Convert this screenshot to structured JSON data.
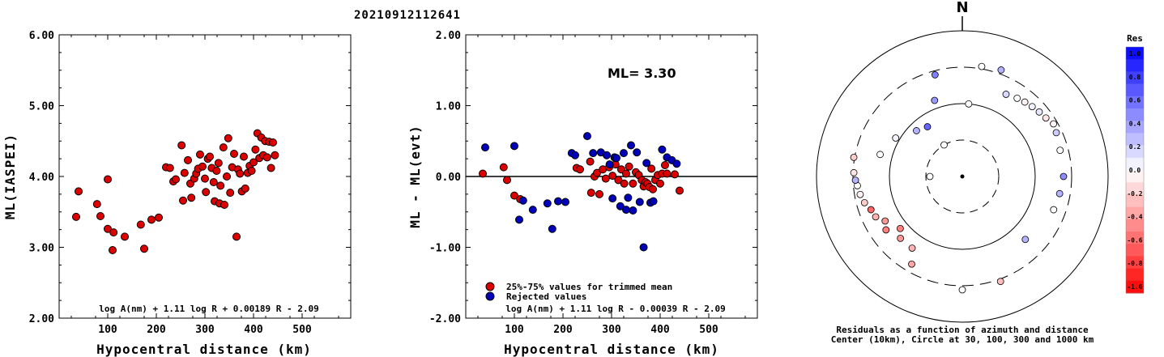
{
  "event_id": "20210912112641",
  "colors": {
    "accepted": "#dd0000",
    "rejected": "#0000bb",
    "axis": "#000000"
  },
  "chart_data": [
    {
      "type": "scatter",
      "ylabel": "ML(IASPEI)",
      "xlabel": "Hypocentral distance (km)",
      "xlim": [
        0,
        600
      ],
      "ylim": [
        2.0,
        6.0
      ],
      "xticks": [
        "100",
        "200",
        "300",
        "400",
        "500"
      ],
      "yticks": [
        "2.00",
        "3.00",
        "4.00",
        "5.00",
        "6.00"
      ],
      "formula": "log A(nm) + 1.11 log R + 0.00189 R - 2.09",
      "points": [
        [
          35,
          3.43
        ],
        [
          40,
          3.79
        ],
        [
          78,
          3.61
        ],
        [
          85,
          3.44
        ],
        [
          100,
          3.96
        ],
        [
          100,
          3.26
        ],
        [
          110,
          2.96
        ],
        [
          112,
          3.21
        ],
        [
          135,
          3.15
        ],
        [
          168,
          3.32
        ],
        [
          175,
          2.98
        ],
        [
          190,
          3.39
        ],
        [
          205,
          3.42
        ],
        [
          220,
          4.13
        ],
        [
          228,
          4.12
        ],
        [
          235,
          3.93
        ],
        [
          240,
          3.96
        ],
        [
          252,
          4.44
        ],
        [
          255,
          3.66
        ],
        [
          258,
          4.05
        ],
        [
          265,
          4.23
        ],
        [
          270,
          3.9
        ],
        [
          272,
          3.7
        ],
        [
          278,
          3.97
        ],
        [
          282,
          4.04
        ],
        [
          286,
          4.11
        ],
        [
          290,
          4.31
        ],
        [
          295,
          4.14
        ],
        [
          300,
          3.97
        ],
        [
          302,
          3.78
        ],
        [
          306,
          4.25
        ],
        [
          310,
          4.28
        ],
        [
          314,
          4.12
        ],
        [
          318,
          3.92
        ],
        [
          320,
          3.65
        ],
        [
          324,
          4.08
        ],
        [
          328,
          4.19
        ],
        [
          330,
          3.62
        ],
        [
          332,
          3.87
        ],
        [
          338,
          4.41
        ],
        [
          340,
          3.6
        ],
        [
          345,
          4.0
        ],
        [
          348,
          4.54
        ],
        [
          352,
          3.77
        ],
        [
          356,
          4.13
        ],
        [
          360,
          4.32
        ],
        [
          365,
          3.15
        ],
        [
          368,
          4.1
        ],
        [
          372,
          4.04
        ],
        [
          376,
          3.79
        ],
        [
          380,
          4.28
        ],
        [
          383,
          3.83
        ],
        [
          388,
          4.05
        ],
        [
          392,
          4.15
        ],
        [
          396,
          4.08
        ],
        [
          400,
          4.2
        ],
        [
          404,
          4.38
        ],
        [
          408,
          4.61
        ],
        [
          412,
          4.26
        ],
        [
          416,
          4.55
        ],
        [
          420,
          4.3
        ],
        [
          424,
          4.5
        ],
        [
          428,
          4.27
        ],
        [
          432,
          4.49
        ],
        [
          436,
          4.12
        ],
        [
          440,
          4.48
        ],
        [
          444,
          4.3
        ]
      ]
    },
    {
      "type": "scatter",
      "ylabel": "ML - ML(evt)",
      "xlabel": "Hypocentral distance (km)",
      "xlim": [
        0,
        600
      ],
      "ylim": [
        -2.0,
        2.0
      ],
      "xticks": [
        "100",
        "200",
        "300",
        "400",
        "500"
      ],
      "yticks": [
        "-2.00",
        "-1.00",
        "0.00",
        "1.00",
        "2.00"
      ],
      "ml_label": "ML= 3.30",
      "formula": "log A(nm) + 1.11 log R - 0.00039 R - 2.09",
      "legend": [
        {
          "label": "25%-75% values for trimmed mean",
          "kind": "accepted"
        },
        {
          "label": "Rejected values",
          "kind": "rejected"
        }
      ],
      "series": [
        {
          "name": "25%-75% values for trimmed mean",
          "kind": "accepted",
          "points": [
            [
              35,
              0.04
            ],
            [
              78,
              0.13
            ],
            [
              85,
              -0.05
            ],
            [
              100,
              -0.27
            ],
            [
              112,
              -0.32
            ],
            [
              228,
              0.12
            ],
            [
              235,
              0.1
            ],
            [
              256,
              0.21
            ],
            [
              258,
              -0.23
            ],
            [
              265,
              0.0
            ],
            [
              270,
              0.05
            ],
            [
              275,
              -0.25
            ],
            [
              282,
              0.1
            ],
            [
              288,
              -0.03
            ],
            [
              295,
              0.13
            ],
            [
              302,
              0.01
            ],
            [
              308,
              0.17
            ],
            [
              314,
              -0.05
            ],
            [
              320,
              0.1
            ],
            [
              326,
              -0.1
            ],
            [
              330,
              0.04
            ],
            [
              336,
              0.14
            ],
            [
              344,
              -0.1
            ],
            [
              350,
              0.06
            ],
            [
              356,
              0.02
            ],
            [
              362,
              -0.05
            ],
            [
              366,
              -0.14
            ],
            [
              370,
              -0.08
            ],
            [
              374,
              -0.1
            ],
            [
              378,
              -0.15
            ],
            [
              382,
              0.11
            ],
            [
              385,
              -0.18
            ],
            [
              390,
              -0.05
            ],
            [
              395,
              0.02
            ],
            [
              400,
              -0.1
            ],
            [
              404,
              0.04
            ],
            [
              410,
              0.16
            ],
            [
              414,
              0.04
            ],
            [
              430,
              0.03
            ],
            [
              440,
              -0.2
            ]
          ]
        },
        {
          "name": "Rejected values",
          "kind": "rejected",
          "points": [
            [
              40,
              0.41
            ],
            [
              100,
              0.43
            ],
            [
              110,
              -0.61
            ],
            [
              118,
              -0.34
            ],
            [
              138,
              -0.47
            ],
            [
              168,
              -0.38
            ],
            [
              178,
              -0.74
            ],
            [
              190,
              -0.35
            ],
            [
              205,
              -0.36
            ],
            [
              218,
              0.33
            ],
            [
              225,
              0.3
            ],
            [
              250,
              0.57
            ],
            [
              262,
              0.33
            ],
            [
              278,
              0.34
            ],
            [
              290,
              0.3
            ],
            [
              296,
              0.17
            ],
            [
              302,
              -0.31
            ],
            [
              306,
              0.27
            ],
            [
              310,
              0.26
            ],
            [
              318,
              -0.42
            ],
            [
              325,
              0.33
            ],
            [
              330,
              -0.47
            ],
            [
              334,
              -0.3
            ],
            [
              340,
              0.44
            ],
            [
              344,
              -0.48
            ],
            [
              352,
              0.34
            ],
            [
              358,
              -0.36
            ],
            [
              366,
              -1.0
            ],
            [
              372,
              0.19
            ],
            [
              380,
              -0.37
            ],
            [
              386,
              -0.35
            ],
            [
              404,
              0.38
            ],
            [
              414,
              0.27
            ],
            [
              424,
              0.23
            ],
            [
              434,
              0.18
            ]
          ]
        }
      ]
    },
    {
      "type": "polar-scatter",
      "north_label": "N",
      "legend_title": "Res",
      "colorbar_ticks": [
        "1.0",
        "0.8",
        "0.6",
        "0.4",
        "0.2",
        "0.0",
        "-0.2",
        "-0.4",
        "-0.6",
        "-0.8",
        "-1.0"
      ],
      "caption_lines": [
        "Residuals as a function of azimuth and distance",
        "Center (10km), Circle at 30, 100, 300 and 1000 km"
      ],
      "points": [
        {
          "az": 5,
          "d": 90,
          "res": 0.0
        },
        {
          "az": 270,
          "d": 40,
          "res": 0.0
        },
        {
          "az": 330,
          "d": 45,
          "res": 0.0
        },
        {
          "az": 28,
          "d": 115,
          "res": 0.15
        },
        {
          "az": 35,
          "d": 118,
          "res": 0.0
        },
        {
          "az": 40,
          "d": 120,
          "res": -0.05
        },
        {
          "az": 45,
          "d": 122,
          "res": 0.05
        },
        {
          "az": 50,
          "d": 124,
          "res": 0.1
        },
        {
          "az": 55,
          "d": 126,
          "res": -0.1
        },
        {
          "az": 60,
          "d": 130,
          "res": -0.05
        },
        {
          "az": 65,
          "d": 128,
          "res": 0.2
        },
        {
          "az": 75,
          "d": 125,
          "res": 0.0
        },
        {
          "az": 90,
          "d": 125,
          "res": 0.45
        },
        {
          "az": 100,
          "d": 122,
          "res": 0.3
        },
        {
          "az": 110,
          "d": 120,
          "res": 0.0
        },
        {
          "az": 240,
          "d": 110,
          "res": -0.4
        },
        {
          "az": 245,
          "d": 118,
          "res": -0.3
        },
        {
          "az": 250,
          "d": 120,
          "res": -0.6
        },
        {
          "az": 255,
          "d": 125,
          "res": -0.2
        },
        {
          "az": 260,
          "d": 128,
          "res": -0.05
        },
        {
          "az": 265,
          "d": 130,
          "res": 0.0
        },
        {
          "az": 268,
          "d": 132,
          "res": 0.3
        },
        {
          "az": 272,
          "d": 134,
          "res": -0.1
        },
        {
          "az": 280,
          "d": 136,
          "res": -0.2
        },
        {
          "az": 215,
          "d": 108,
          "res": -0.3
        },
        {
          "az": 210,
          "d": 125,
          "res": -0.35
        },
        {
          "az": 180,
          "d": 140,
          "res": 0.0
        },
        {
          "az": 160,
          "d": 138,
          "res": -0.25
        },
        {
          "az": 340,
          "d": 100,
          "res": 0.4
        },
        {
          "az": 300,
          "d": 95,
          "res": 0.05
        },
        {
          "az": 345,
          "d": 130,
          "res": 0.5
        },
        {
          "az": 20,
          "d": 140,
          "res": 0.3
        },
        {
          "az": 10,
          "d": 138,
          "res": 0.0
        },
        {
          "az": 135,
          "d": 110,
          "res": 0.3
        },
        {
          "az": 325,
          "d": 75,
          "res": 0.6
        },
        {
          "az": 315,
          "d": 80,
          "res": 0.3
        },
        {
          "az": 285,
          "d": 105,
          "res": 0.0
        },
        {
          "az": 235,
          "d": 115,
          "res": -0.5
        },
        {
          "az": 230,
          "d": 100,
          "res": -0.5
        },
        {
          "az": 225,
          "d": 108,
          "res": -0.4
        }
      ]
    }
  ]
}
